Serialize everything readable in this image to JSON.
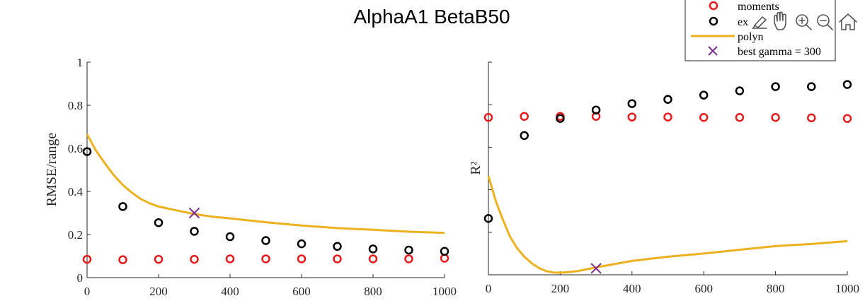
{
  "figure": {
    "title": "AlphaA1 BetaB50"
  },
  "colors": {
    "moments": "#e41a1c",
    "exact": "#000000",
    "polyn": "#edb120",
    "best": "#7e2f8e",
    "axis": "#262626"
  },
  "legend": {
    "placement": "top-right",
    "entries": [
      {
        "label": "moments",
        "marker": "circle",
        "color": "#e41a1c"
      },
      {
        "label": "ex",
        "marker": "circle",
        "color": "#000000"
      },
      {
        "label": "polyn",
        "marker": "line",
        "color": "#edb120"
      },
      {
        "label": "best gamma = 300",
        "marker": "x",
        "color": "#7e2f8e"
      }
    ]
  },
  "toolbar": {
    "icons": [
      "brush-icon",
      "pan-hand-icon",
      "zoom-in-icon",
      "zoom-out-icon",
      "home-icon"
    ]
  },
  "chart_data": [
    {
      "type": "scatter",
      "title": "",
      "xlabel": "",
      "ylabel": "RMSE/range",
      "xlim": [
        0,
        1000
      ],
      "ylim": [
        0,
        1
      ],
      "xticks": [
        0,
        200,
        400,
        600,
        800,
        1000
      ],
      "yticks": [
        0,
        0.2,
        0.4,
        0.6,
        0.8,
        1
      ],
      "ytick_labels": [
        "0",
        "0.2",
        "0.4",
        "0.6",
        "0.8",
        "1"
      ],
      "grid": false,
      "x": [
        0,
        100,
        200,
        300,
        400,
        500,
        600,
        700,
        800,
        900,
        1000
      ],
      "series": [
        {
          "name": "moments",
          "kind": "points",
          "color": "#e41a1c",
          "values": [
            0.085,
            0.083,
            0.085,
            0.085,
            0.087,
            0.087,
            0.087,
            0.087,
            0.087,
            0.087,
            0.09
          ]
        },
        {
          "name": "ex",
          "kind": "points",
          "color": "#000000",
          "values": [
            0.585,
            0.33,
            0.255,
            0.215,
            0.19,
            0.172,
            0.157,
            0.145,
            0.133,
            0.128,
            0.122
          ]
        },
        {
          "name": "polyn",
          "kind": "line",
          "color": "#edb120",
          "x": [
            0,
            25,
            50,
            75,
            100,
            125,
            150,
            175,
            200,
            250,
            300,
            350,
            400,
            500,
            600,
            700,
            800,
            900,
            1000
          ],
          "values": [
            0.665,
            0.59,
            0.53,
            0.475,
            0.43,
            0.395,
            0.365,
            0.345,
            0.33,
            0.312,
            0.295,
            0.283,
            0.275,
            0.257,
            0.242,
            0.23,
            0.222,
            0.213,
            0.208
          ]
        },
        {
          "name": "best gamma = 300",
          "kind": "x",
          "color": "#7e2f8e",
          "points": [
            [
              300,
              0.3
            ]
          ]
        }
      ]
    },
    {
      "type": "scatter",
      "title": "",
      "xlabel": "",
      "ylabel": "R²",
      "xlim": [
        0,
        1000
      ],
      "ylim": [
        0,
        1
      ],
      "xticks": [
        0,
        200,
        400,
        600,
        800,
        1000
      ],
      "yticks": [
        0,
        0.2,
        0.4,
        0.6,
        0.8,
        1
      ],
      "ytick_labels": [
        "",
        "",
        "",
        "",
        "",
        ""
      ],
      "grid": false,
      "x": [
        0,
        100,
        200,
        300,
        400,
        500,
        600,
        700,
        800,
        900,
        1000
      ],
      "series": [
        {
          "name": "moments",
          "kind": "points",
          "color": "#e41a1c",
          "values": [
            0.74,
            0.745,
            0.745,
            0.745,
            0.742,
            0.742,
            0.74,
            0.74,
            0.74,
            0.738,
            0.735
          ]
        },
        {
          "name": "ex",
          "kind": "points",
          "color": "#000000",
          "values": [
            0.265,
            0.655,
            0.735,
            0.775,
            0.805,
            0.825,
            0.845,
            0.865,
            0.885,
            0.885,
            0.895
          ]
        },
        {
          "name": "polyn",
          "kind": "line",
          "color": "#edb120",
          "x": [
            0,
            20,
            40,
            60,
            80,
            100,
            120,
            140,
            160,
            180,
            200,
            220,
            250,
            300,
            350,
            400,
            500,
            600,
            700,
            800,
            900,
            1000
          ],
          "values": [
            0.465,
            0.35,
            0.26,
            0.18,
            0.125,
            0.085,
            0.055,
            0.033,
            0.018,
            0.011,
            0.01,
            0.012,
            0.018,
            0.035,
            0.05,
            0.065,
            0.085,
            0.1,
            0.118,
            0.135,
            0.145,
            0.158
          ]
        },
        {
          "name": "best gamma = 300",
          "kind": "x",
          "color": "#7e2f8e",
          "points": [
            [
              300,
              0.03
            ]
          ]
        }
      ]
    }
  ]
}
